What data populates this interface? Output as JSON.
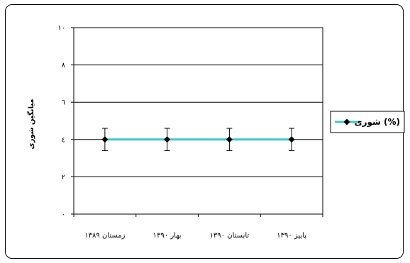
{
  "chart_data": {
    "type": "line",
    "categories": [
      "زمستان ۱۳۸۹",
      "بهار ۱۳۹۰",
      "تابستان ۱۳۹۰",
      "پاییز ۱۳۹۰"
    ],
    "series": [
      {
        "name": "شوری (%)",
        "values": [
          4,
          4,
          4,
          4
        ],
        "error": [
          0.6,
          0.6,
          0.6,
          0.6
        ],
        "color": "#40C8C8"
      }
    ],
    "yticks": [
      {
        "value": 0,
        "label": "۰"
      },
      {
        "value": 2,
        "label": "۲"
      },
      {
        "value": 4,
        "label": "٤"
      },
      {
        "value": 6,
        "label": "٦"
      },
      {
        "value": 8,
        "label": "۸"
      },
      {
        "value": 10,
        "label": "۱۰"
      }
    ],
    "ylabel": "میانگین شوری",
    "xlabel": "",
    "ylim": [
      0,
      10
    ],
    "grid": true,
    "legend_position": "right"
  }
}
